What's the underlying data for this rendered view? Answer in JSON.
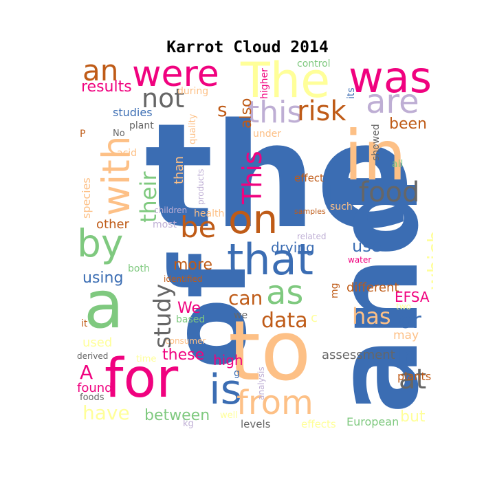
{
  "title": "Karrot Cloud 2014",
  "palette": {
    "blue": "#3b6db3",
    "peach": "#fdc086",
    "pink": "#f0027f",
    "green": "#7fc97f",
    "brown": "#bf5b17",
    "lavender": "#beaed4",
    "gray": "#666666",
    "yellow": "#ffff99"
  },
  "words": [
    {
      "text": "the",
      "color": "blue"
    },
    {
      "text": "of",
      "color": "blue"
    },
    {
      "text": "and",
      "color": "blue"
    },
    {
      "text": "in",
      "color": "peach"
    },
    {
      "text": "to",
      "color": "peach"
    },
    {
      "text": "a",
      "color": "green"
    },
    {
      "text": "for",
      "color": "pink"
    },
    {
      "text": "The",
      "color": "yellow"
    },
    {
      "text": "were",
      "color": "pink"
    },
    {
      "text": "was",
      "color": "pink"
    },
    {
      "text": "with",
      "color": "peach"
    },
    {
      "text": "on",
      "color": "brown"
    },
    {
      "text": "that",
      "color": "blue"
    },
    {
      "text": "is",
      "color": "blue"
    },
    {
      "text": "by",
      "color": "green"
    },
    {
      "text": "as",
      "color": "green"
    },
    {
      "text": "from",
      "color": "peach"
    },
    {
      "text": "are",
      "color": "lavender"
    },
    {
      "text": "this",
      "color": "lavender"
    },
    {
      "text": "risk",
      "color": "brown"
    },
    {
      "text": "food",
      "color": "gray"
    },
    {
      "text": "an",
      "color": "brown"
    },
    {
      "text": "not",
      "color": "gray"
    },
    {
      "text": "be",
      "color": "brown"
    },
    {
      "text": "This",
      "color": "pink"
    },
    {
      "text": "their",
      "color": "green"
    },
    {
      "text": "study",
      "color": "gray"
    },
    {
      "text": "which",
      "color": "yellow"
    },
    {
      "text": "have",
      "color": "yellow"
    },
    {
      "text": "at",
      "color": "gray"
    },
    {
      "text": "In",
      "color": "blue"
    },
    {
      "text": "or",
      "color": "blue"
    },
    {
      "text": "has",
      "color": "peach"
    },
    {
      "text": "data",
      "color": "brown"
    },
    {
      "text": "can",
      "color": "brown"
    },
    {
      "text": "been",
      "color": "brown"
    },
    {
      "text": "between",
      "color": "green"
    },
    {
      "text": "these",
      "color": "pink"
    },
    {
      "text": "more",
      "color": "brown"
    },
    {
      "text": "using",
      "color": "blue"
    },
    {
      "text": "results",
      "color": "pink"
    },
    {
      "text": "also",
      "color": "brown"
    },
    {
      "text": "s",
      "color": "brown"
    },
    {
      "text": "drying",
      "color": "blue"
    },
    {
      "text": "use",
      "color": "blue"
    },
    {
      "text": "high",
      "color": "pink"
    },
    {
      "text": "assessment",
      "color": "gray"
    },
    {
      "text": "A",
      "color": "pink"
    },
    {
      "text": "EFSA",
      "color": "pink"
    },
    {
      "text": "different",
      "color": "brown"
    },
    {
      "text": "We",
      "color": "pink"
    },
    {
      "text": "other",
      "color": "brown"
    },
    {
      "text": "than",
      "color": "peach"
    },
    {
      "text": "studies",
      "color": "blue"
    },
    {
      "text": "found",
      "color": "pink"
    },
    {
      "text": "used",
      "color": "yellow"
    },
    {
      "text": "but",
      "color": "yellow"
    },
    {
      "text": "plants",
      "color": "brown"
    },
    {
      "text": "European",
      "color": "green"
    },
    {
      "text": "levels",
      "color": "gray"
    },
    {
      "text": "effects",
      "color": "yellow"
    },
    {
      "text": "may",
      "color": "peach"
    },
    {
      "text": "effect",
      "color": "brown"
    },
    {
      "text": "based",
      "color": "green"
    },
    {
      "text": "we",
      "color": "gray"
    },
    {
      "text": "species",
      "color": "peach"
    },
    {
      "text": "control",
      "color": "green"
    },
    {
      "text": "higher",
      "color": "pink"
    },
    {
      "text": "its",
      "color": "blue"
    },
    {
      "text": "during",
      "color": "peach"
    },
    {
      "text": "quality",
      "color": "peach"
    },
    {
      "text": "plant",
      "color": "gray"
    },
    {
      "text": "under",
      "color": "peach"
    },
    {
      "text": "showed",
      "color": "gray"
    },
    {
      "text": "acid",
      "color": "peach"
    },
    {
      "text": "No",
      "color": "gray"
    },
    {
      "text": "P",
      "color": "brown"
    },
    {
      "text": "all",
      "color": "green"
    },
    {
      "text": "products",
      "color": "lavender"
    },
    {
      "text": "health",
      "color": "peach"
    },
    {
      "text": "such",
      "color": "peach"
    },
    {
      "text": "samples",
      "color": "brown"
    },
    {
      "text": "children",
      "color": "lavender"
    },
    {
      "text": "most",
      "color": "lavender"
    },
    {
      "text": "related",
      "color": "lavender"
    },
    {
      "text": "water",
      "color": "pink"
    },
    {
      "text": "both",
      "color": "green"
    },
    {
      "text": "identified",
      "color": "brown"
    },
    {
      "text": "mg",
      "color": "brown"
    },
    {
      "text": "it",
      "color": "brown"
    },
    {
      "text": "c",
      "color": "yellow"
    },
    {
      "text": "two",
      "color": "yellow"
    },
    {
      "text": "derived",
      "color": "gray"
    },
    {
      "text": "time",
      "color": "yellow"
    },
    {
      "text": "consumer",
      "color": "peach"
    },
    {
      "text": "analysis",
      "color": "lavender"
    },
    {
      "text": "g",
      "color": "blue"
    },
    {
      "text": "foods",
      "color": "gray"
    },
    {
      "text": "kg",
      "color": "lavender"
    },
    {
      "text": "well",
      "color": "yellow"
    }
  ]
}
